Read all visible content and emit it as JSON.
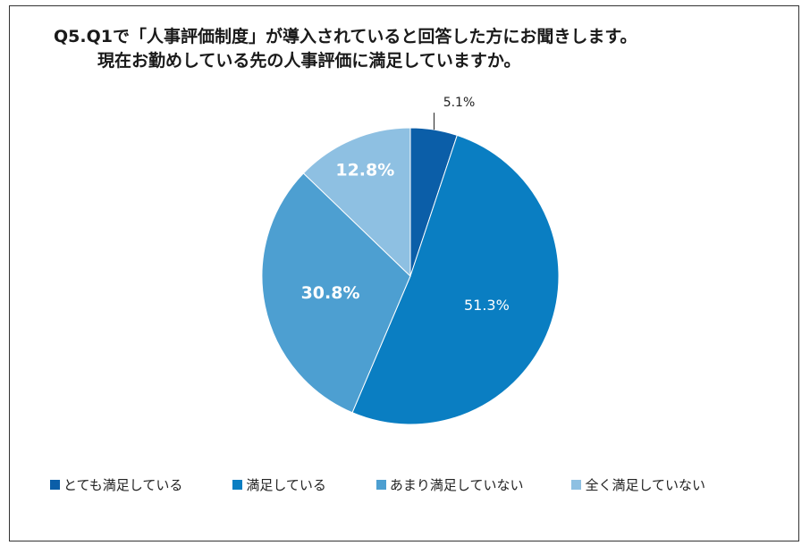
{
  "chart_data": {
    "type": "pie",
    "title": "Q5.Q1で「人事評価制度」が導入されていると回答した方にお聞きします。",
    "subtitle": "現在お勤めしている先の人事評価に満足していますか。",
    "categories": [
      "とても満足している",
      "満足している",
      "あまり満足していない",
      "全く満足していない"
    ],
    "values": [
      5.1,
      51.3,
      30.8,
      12.8
    ],
    "value_labels": [
      "5.1%",
      "51.3%",
      "30.8%",
      "12.8%"
    ],
    "colors": [
      "#0b5ea8",
      "#0a7ec2",
      "#4d9fd1",
      "#8ec0e2"
    ],
    "legend_position": "bottom"
  }
}
